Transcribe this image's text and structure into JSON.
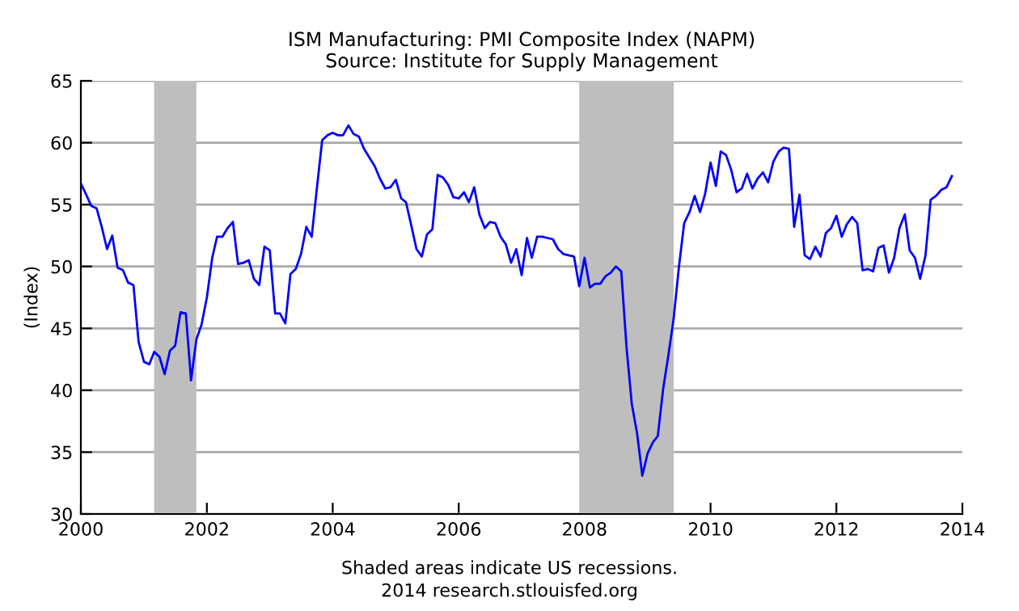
{
  "chart_data": {
    "type": "line",
    "title": "ISM Manufacturing: PMI Composite Index (NAPM)",
    "subtitle": "Source: Institute for Supply Management",
    "ylabel": "(Index)",
    "annotations": [
      "Shaded areas indicate US recessions.",
      "2014 research.stlouisfed.org"
    ],
    "x": [
      "2000-01",
      "2000-02",
      "2000-03",
      "2000-04",
      "2000-05",
      "2000-06",
      "2000-07",
      "2000-08",
      "2000-09",
      "2000-10",
      "2000-11",
      "2000-12",
      "2001-01",
      "2001-02",
      "2001-03",
      "2001-04",
      "2001-05",
      "2001-06",
      "2001-07",
      "2001-08",
      "2001-09",
      "2001-10",
      "2001-11",
      "2001-12",
      "2002-01",
      "2002-02",
      "2002-03",
      "2002-04",
      "2002-05",
      "2002-06",
      "2002-07",
      "2002-08",
      "2002-09",
      "2002-10",
      "2002-11",
      "2002-12",
      "2003-01",
      "2003-02",
      "2003-03",
      "2003-04",
      "2003-05",
      "2003-06",
      "2003-07",
      "2003-08",
      "2003-09",
      "2003-10",
      "2003-11",
      "2003-12",
      "2004-01",
      "2004-02",
      "2004-03",
      "2004-04",
      "2004-05",
      "2004-06",
      "2004-07",
      "2004-08",
      "2004-09",
      "2004-10",
      "2004-11",
      "2004-12",
      "2005-01",
      "2005-02",
      "2005-03",
      "2005-04",
      "2005-05",
      "2005-06",
      "2005-07",
      "2005-08",
      "2005-09",
      "2005-10",
      "2005-11",
      "2005-12",
      "2006-01",
      "2006-02",
      "2006-03",
      "2006-04",
      "2006-05",
      "2006-06",
      "2006-07",
      "2006-08",
      "2006-09",
      "2006-10",
      "2006-11",
      "2006-12",
      "2007-01",
      "2007-02",
      "2007-03",
      "2007-04",
      "2007-05",
      "2007-06",
      "2007-07",
      "2007-08",
      "2007-09",
      "2007-10",
      "2007-11",
      "2007-12",
      "2008-01",
      "2008-02",
      "2008-03",
      "2008-04",
      "2008-05",
      "2008-06",
      "2008-07",
      "2008-08",
      "2008-09",
      "2008-10",
      "2008-11",
      "2008-12",
      "2009-01",
      "2009-02",
      "2009-03",
      "2009-04",
      "2009-05",
      "2009-06",
      "2009-07",
      "2009-08",
      "2009-09",
      "2009-10",
      "2009-11",
      "2009-12",
      "2010-01",
      "2010-02",
      "2010-03",
      "2010-04",
      "2010-05",
      "2010-06",
      "2010-07",
      "2010-08",
      "2010-09",
      "2010-10",
      "2010-11",
      "2010-12",
      "2011-01",
      "2011-02",
      "2011-03",
      "2011-04",
      "2011-05",
      "2011-06",
      "2011-07",
      "2011-08",
      "2011-09",
      "2011-10",
      "2011-11",
      "2011-12",
      "2012-01",
      "2012-02",
      "2012-03",
      "2012-04",
      "2012-05",
      "2012-06",
      "2012-07",
      "2012-08",
      "2012-09",
      "2012-10",
      "2012-11",
      "2012-12",
      "2013-01",
      "2013-02",
      "2013-03",
      "2013-04",
      "2013-05",
      "2013-06",
      "2013-07",
      "2013-08",
      "2013-09",
      "2013-10",
      "2013-11"
    ],
    "series": [
      {
        "color": "#0000ff",
        "values": [
          56.7,
          55.8,
          54.9,
          54.7,
          53.2,
          51.4,
          52.5,
          49.9,
          49.7,
          48.7,
          48.5,
          43.9,
          42.3,
          42.1,
          43.1,
          42.7,
          41.3,
          43.2,
          43.6,
          46.3,
          46.2,
          40.8,
          44.1,
          45.3,
          47.5,
          50.7,
          52.4,
          52.4,
          53.1,
          53.6,
          50.2,
          50.3,
          50.5,
          49.0,
          48.5,
          51.6,
          51.3,
          46.2,
          46.2,
          45.4,
          49.4,
          49.8,
          51.0,
          53.2,
          52.4,
          56.3,
          60.2,
          60.6,
          60.8,
          60.6,
          60.6,
          61.4,
          60.7,
          60.5,
          59.5,
          58.8,
          58.1,
          57.1,
          56.3,
          56.4,
          57.0,
          55.5,
          55.2,
          53.3,
          51.4,
          50.8,
          52.6,
          53.0,
          57.4,
          57.2,
          56.6,
          55.6,
          55.5,
          56.0,
          55.2,
          56.4,
          54.2,
          53.1,
          53.6,
          53.5,
          52.4,
          51.8,
          50.3,
          51.4,
          49.3,
          52.3,
          50.7,
          52.4,
          52.4,
          52.3,
          52.2,
          51.4,
          51.0,
          50.9,
          50.8,
          48.4,
          50.7,
          48.3,
          48.6,
          48.6,
          49.2,
          49.5,
          50.0,
          49.6,
          43.4,
          38.9,
          36.5,
          33.1,
          34.9,
          35.8,
          36.3,
          40.1,
          42.8,
          45.8,
          49.9,
          53.5,
          54.4,
          55.7,
          54.4,
          55.9,
          58.4,
          56.5,
          59.3,
          59.0,
          57.8,
          56.0,
          56.3,
          57.5,
          56.3,
          57.1,
          57.6,
          56.8,
          58.5,
          59.3,
          59.6,
          59.5,
          53.2,
          55.8,
          50.9,
          50.6,
          51.6,
          50.8,
          52.7,
          53.1,
          54.1,
          52.4,
          53.4,
          54.0,
          53.5,
          49.7,
          49.8,
          49.6,
          51.5,
          51.7,
          49.5,
          50.7,
          53.1,
          54.2,
          51.3,
          50.7,
          49.0,
          50.9,
          55.4,
          55.7,
          56.2,
          56.4,
          57.3
        ]
      }
    ],
    "xlim": [
      "2000-01-01",
      "2014-01-01"
    ],
    "xticks": [
      "2000",
      "2002",
      "2004",
      "2006",
      "2008",
      "2010",
      "2012",
      "2014"
    ],
    "ylim": [
      30,
      65
    ],
    "yticks": [
      30,
      35,
      40,
      45,
      50,
      55,
      60,
      65
    ],
    "bands": [
      {
        "axis": "x",
        "from": "2001-03",
        "to": "2001-11",
        "color": "#bebebe"
      },
      {
        "axis": "x",
        "from": "2007-12",
        "to": "2009-06",
        "color": "#bebebe"
      }
    ],
    "grid": "y",
    "legend": false
  }
}
